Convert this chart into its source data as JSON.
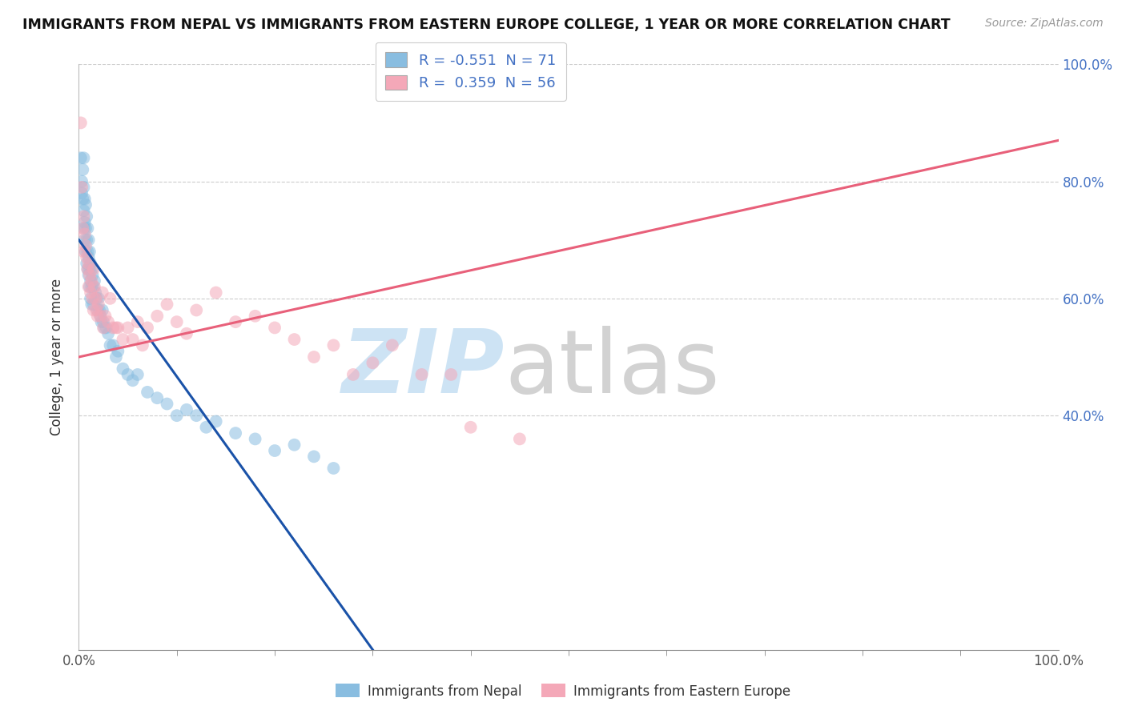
{
  "title": "IMMIGRANTS FROM NEPAL VS IMMIGRANTS FROM EASTERN EUROPE COLLEGE, 1 YEAR OR MORE CORRELATION CHART",
  "source": "Source: ZipAtlas.com",
  "ylabel": "College, 1 year or more",
  "nepal_color": "#89bde0",
  "eastern_europe_color": "#f4a8b8",
  "nepal_line_color": "#1a52a8",
  "eastern_europe_line_color": "#e8607a",
  "nepal_R": -0.551,
  "nepal_N": 71,
  "eastern_europe_R": 0.359,
  "eastern_europe_N": 56,
  "xlim": [
    0.0,
    1.0
  ],
  "ylim": [
    0.0,
    1.0
  ],
  "nepal_line": [
    0.0,
    0.7,
    0.3,
    0.0
  ],
  "eastern_europe_line": [
    0.0,
    0.5,
    1.0,
    0.87
  ],
  "nepal_points": [
    [
      0.002,
      0.84
    ],
    [
      0.003,
      0.8
    ],
    [
      0.003,
      0.78
    ],
    [
      0.004,
      0.82
    ],
    [
      0.004,
      0.77
    ],
    [
      0.005,
      0.79
    ],
    [
      0.005,
      0.75
    ],
    [
      0.005,
      0.72
    ],
    [
      0.005,
      0.84
    ],
    [
      0.006,
      0.77
    ],
    [
      0.006,
      0.73
    ],
    [
      0.006,
      0.7
    ],
    [
      0.007,
      0.76
    ],
    [
      0.007,
      0.72
    ],
    [
      0.007,
      0.68
    ],
    [
      0.008,
      0.74
    ],
    [
      0.008,
      0.7
    ],
    [
      0.008,
      0.66
    ],
    [
      0.009,
      0.72
    ],
    [
      0.009,
      0.68
    ],
    [
      0.009,
      0.65
    ],
    [
      0.01,
      0.7
    ],
    [
      0.01,
      0.67
    ],
    [
      0.01,
      0.64
    ],
    [
      0.011,
      0.68
    ],
    [
      0.011,
      0.65
    ],
    [
      0.011,
      0.62
    ],
    [
      0.012,
      0.66
    ],
    [
      0.012,
      0.63
    ],
    [
      0.012,
      0.6
    ],
    [
      0.013,
      0.65
    ],
    [
      0.013,
      0.62
    ],
    [
      0.013,
      0.59
    ],
    [
      0.014,
      0.64
    ],
    [
      0.015,
      0.62
    ],
    [
      0.015,
      0.59
    ],
    [
      0.016,
      0.63
    ],
    [
      0.017,
      0.61
    ],
    [
      0.018,
      0.6
    ],
    [
      0.019,
      0.58
    ],
    [
      0.02,
      0.6
    ],
    [
      0.021,
      0.58
    ],
    [
      0.022,
      0.57
    ],
    [
      0.023,
      0.56
    ],
    [
      0.024,
      0.58
    ],
    [
      0.025,
      0.56
    ],
    [
      0.026,
      0.55
    ],
    [
      0.028,
      0.55
    ],
    [
      0.03,
      0.54
    ],
    [
      0.032,
      0.52
    ],
    [
      0.035,
      0.52
    ],
    [
      0.038,
      0.5
    ],
    [
      0.04,
      0.51
    ],
    [
      0.045,
      0.48
    ],
    [
      0.05,
      0.47
    ],
    [
      0.055,
      0.46
    ],
    [
      0.06,
      0.47
    ],
    [
      0.07,
      0.44
    ],
    [
      0.08,
      0.43
    ],
    [
      0.09,
      0.42
    ],
    [
      0.1,
      0.4
    ],
    [
      0.11,
      0.41
    ],
    [
      0.12,
      0.4
    ],
    [
      0.13,
      0.38
    ],
    [
      0.14,
      0.39
    ],
    [
      0.16,
      0.37
    ],
    [
      0.18,
      0.36
    ],
    [
      0.2,
      0.34
    ],
    [
      0.22,
      0.35
    ],
    [
      0.24,
      0.33
    ],
    [
      0.26,
      0.31
    ]
  ],
  "eastern_europe_points": [
    [
      0.002,
      0.9
    ],
    [
      0.003,
      0.79
    ],
    [
      0.004,
      0.72
    ],
    [
      0.005,
      0.74
    ],
    [
      0.005,
      0.68
    ],
    [
      0.006,
      0.71
    ],
    [
      0.007,
      0.69
    ],
    [
      0.008,
      0.67
    ],
    [
      0.009,
      0.65
    ],
    [
      0.01,
      0.66
    ],
    [
      0.01,
      0.62
    ],
    [
      0.011,
      0.64
    ],
    [
      0.012,
      0.61
    ],
    [
      0.013,
      0.63
    ],
    [
      0.014,
      0.6
    ],
    [
      0.015,
      0.65
    ],
    [
      0.015,
      0.58
    ],
    [
      0.016,
      0.62
    ],
    [
      0.017,
      0.6
    ],
    [
      0.018,
      0.58
    ],
    [
      0.019,
      0.57
    ],
    [
      0.02,
      0.59
    ],
    [
      0.022,
      0.57
    ],
    [
      0.024,
      0.61
    ],
    [
      0.025,
      0.55
    ],
    [
      0.027,
      0.57
    ],
    [
      0.03,
      0.56
    ],
    [
      0.032,
      0.6
    ],
    [
      0.035,
      0.55
    ],
    [
      0.038,
      0.55
    ],
    [
      0.04,
      0.55
    ],
    [
      0.045,
      0.53
    ],
    [
      0.05,
      0.55
    ],
    [
      0.055,
      0.53
    ],
    [
      0.06,
      0.56
    ],
    [
      0.065,
      0.52
    ],
    [
      0.07,
      0.55
    ],
    [
      0.08,
      0.57
    ],
    [
      0.09,
      0.59
    ],
    [
      0.1,
      0.56
    ],
    [
      0.11,
      0.54
    ],
    [
      0.12,
      0.58
    ],
    [
      0.14,
      0.61
    ],
    [
      0.16,
      0.56
    ],
    [
      0.18,
      0.57
    ],
    [
      0.2,
      0.55
    ],
    [
      0.22,
      0.53
    ],
    [
      0.24,
      0.5
    ],
    [
      0.26,
      0.52
    ],
    [
      0.28,
      0.47
    ],
    [
      0.3,
      0.49
    ],
    [
      0.32,
      0.52
    ],
    [
      0.35,
      0.47
    ],
    [
      0.38,
      0.47
    ],
    [
      0.4,
      0.38
    ],
    [
      0.45,
      0.36
    ]
  ]
}
